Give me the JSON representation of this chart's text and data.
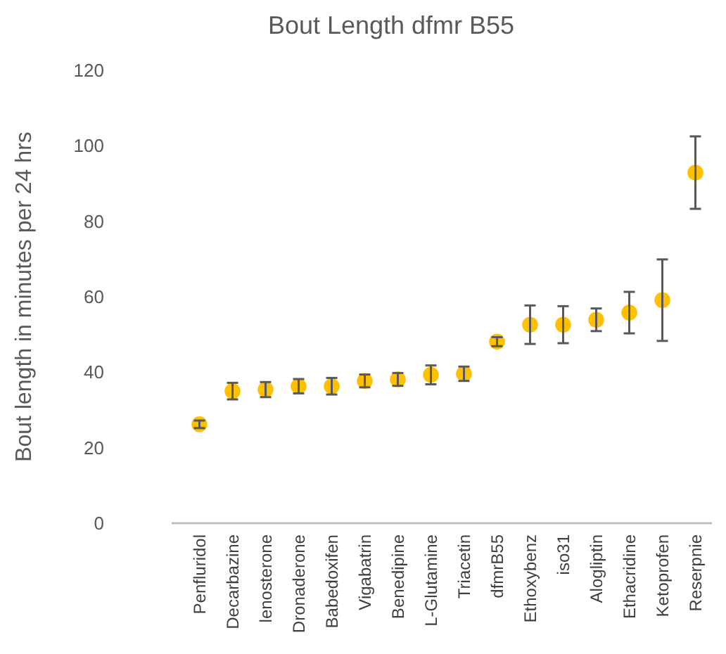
{
  "chart_data": {
    "type": "scatter",
    "title": "Bout Length dfmr B55",
    "ylabel": "Bout length in minutes per 24 hrs",
    "categories": [
      "Penfluridol",
      "Decarbazine",
      "lenosterone",
      "Dronaderone",
      "Babedoxifen",
      "Vigabatrin",
      "Benedipine",
      "L-Glutamine",
      "Triacetin",
      "dfmrB55",
      "Ethoxybenz",
      "iso31",
      "Alogliptin",
      "Ethacridine",
      "Ketoprofen",
      "Reserpnie"
    ],
    "series": [
      {
        "color": "#ffc000",
        "values": [
          26.2,
          35,
          35.4,
          36.3,
          36.3,
          37.7,
          38.1,
          39.3,
          39.6,
          48.1,
          52.6,
          52.6,
          53.9,
          55.8,
          59.1,
          92.9
        ],
        "errors": [
          1,
          2.2,
          2,
          1.9,
          2.2,
          1.7,
          1.7,
          2.5,
          1.9,
          1.2,
          5.1,
          4.9,
          3,
          5.5,
          10.8,
          9.6
        ]
      }
    ],
    "ylim": [
      0,
      120
    ],
    "yticks": [
      0,
      20,
      40,
      60,
      80,
      100,
      120
    ],
    "grid": false,
    "marker": "circle"
  }
}
